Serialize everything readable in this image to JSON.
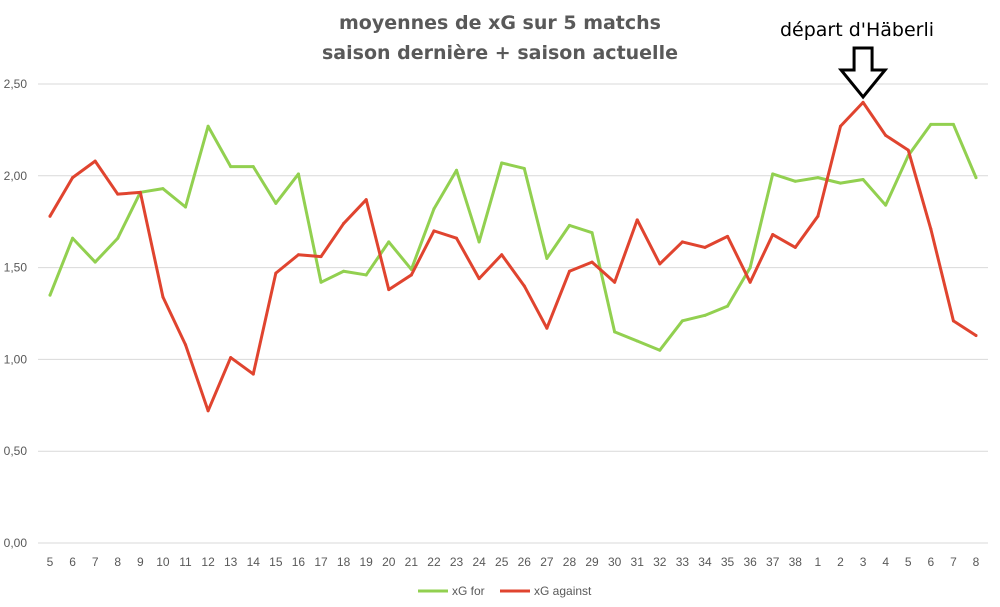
{
  "chart_data": {
    "type": "line",
    "title": "moyennes de xG sur 5 matchs",
    "subtitle": "saison dernière + saison actuelle",
    "annotation": "départ d'Häberli",
    "annotation_category_index": 36,
    "categories": [
      "5",
      "6",
      "7",
      "8",
      "9",
      "10",
      "11",
      "12",
      "13",
      "14",
      "15",
      "16",
      "17",
      "18",
      "19",
      "20",
      "21",
      "22",
      "23",
      "24",
      "25",
      "26",
      "27",
      "28",
      "29",
      "30",
      "31",
      "32",
      "33",
      "34",
      "35",
      "36",
      "37",
      "38",
      "1",
      "2",
      "3",
      "4",
      "5",
      "6",
      "7",
      "8"
    ],
    "y_ticks": [
      "0,00",
      "0,50",
      "1,00",
      "1,50",
      "2,00",
      "2,50"
    ],
    "ylim": [
      0,
      2.5
    ],
    "grid": true,
    "legend_position": "bottom",
    "series": [
      {
        "name": "xG for",
        "color": "#92d050",
        "values": [
          1.35,
          1.66,
          1.53,
          1.66,
          1.91,
          1.93,
          1.83,
          2.27,
          2.05,
          2.05,
          1.85,
          2.01,
          1.42,
          1.48,
          1.46,
          1.64,
          1.49,
          1.82,
          2.03,
          1.64,
          2.07,
          2.04,
          1.55,
          1.73,
          1.69,
          1.15,
          1.1,
          1.05,
          1.21,
          1.24,
          1.29,
          1.5,
          2.01,
          1.97,
          1.99,
          1.96,
          1.98,
          1.84,
          2.11,
          2.28,
          2.28,
          1.99
        ]
      },
      {
        "name": "xG against",
        "color": "#e0442f",
        "values": [
          1.78,
          1.99,
          2.08,
          1.9,
          1.91,
          1.34,
          1.08,
          0.72,
          1.01,
          0.92,
          1.47,
          1.57,
          1.56,
          1.74,
          1.87,
          1.38,
          1.46,
          1.7,
          1.66,
          1.44,
          1.57,
          1.4,
          1.17,
          1.48,
          1.53,
          1.42,
          1.76,
          1.52,
          1.64,
          1.61,
          1.67,
          1.42,
          1.68,
          1.61,
          1.78,
          2.27,
          2.4,
          2.22,
          2.14,
          1.71,
          1.21,
          1.13
        ]
      }
    ]
  }
}
